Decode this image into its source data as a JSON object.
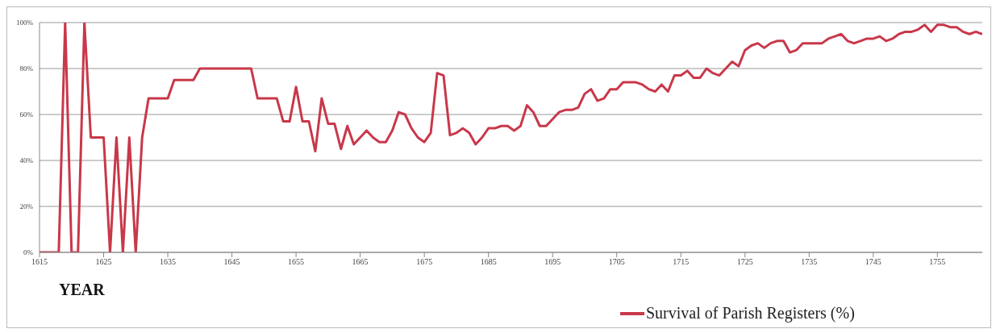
{
  "chart_data": {
    "type": "line",
    "xlabel": "YEAR",
    "legend": "bottom",
    "grid": "y",
    "marker": "none",
    "line_style": "solid",
    "x": [
      1615,
      1616,
      1617,
      1618,
      1619,
      1620,
      1621,
      1622,
      1623,
      1624,
      1625,
      1626,
      1627,
      1628,
      1629,
      1630,
      1631,
      1632,
      1633,
      1634,
      1635,
      1636,
      1637,
      1638,
      1639,
      1640,
      1641,
      1642,
      1643,
      1644,
      1645,
      1646,
      1647,
      1648,
      1649,
      1650,
      1651,
      1652,
      1653,
      1654,
      1655,
      1656,
      1657,
      1658,
      1659,
      1660,
      1661,
      1662,
      1663,
      1664,
      1665,
      1666,
      1667,
      1668,
      1669,
      1670,
      1671,
      1672,
      1673,
      1674,
      1675,
      1676,
      1677,
      1678,
      1679,
      1680,
      1681,
      1682,
      1683,
      1684,
      1685,
      1686,
      1687,
      1688,
      1689,
      1690,
      1691,
      1692,
      1693,
      1694,
      1695,
      1696,
      1697,
      1698,
      1699,
      1700,
      1701,
      1702,
      1703,
      1704,
      1705,
      1706,
      1707,
      1708,
      1709,
      1710,
      1711,
      1712,
      1713,
      1714,
      1715,
      1716,
      1717,
      1718,
      1719,
      1720,
      1721,
      1722,
      1723,
      1724,
      1725,
      1726,
      1727,
      1728,
      1729,
      1730,
      1731,
      1732,
      1733,
      1734,
      1735,
      1736,
      1737,
      1738,
      1739,
      1740,
      1741,
      1742,
      1743,
      1744,
      1745,
      1746,
      1747,
      1748,
      1749,
      1750,
      1751,
      1752,
      1753,
      1754,
      1755,
      1756,
      1757,
      1758,
      1759,
      1760,
      1761,
      1762
    ],
    "series": [
      {
        "name": "Survival of Parish Registers (%)",
        "color": "#c8384a",
        "values": [
          0,
          0,
          0,
          0,
          100,
          0,
          0,
          100,
          50,
          50,
          50,
          0,
          50,
          0,
          50,
          0,
          50,
          67,
          67,
          67,
          67,
          75,
          75,
          75,
          75,
          80,
          80,
          80,
          80,
          80,
          80,
          80,
          80,
          80,
          67,
          67,
          67,
          67,
          57,
          57,
          72,
          57,
          57,
          44,
          67,
          56,
          56,
          45,
          55,
          47,
          50,
          53,
          50,
          48,
          48,
          53,
          61,
          60,
          54,
          50,
          48,
          52,
          78,
          77,
          51,
          52,
          54,
          52,
          47,
          50,
          54,
          54,
          55,
          55,
          53,
          55,
          64,
          61,
          55,
          55,
          58,
          61,
          62,
          62,
          63,
          69,
          71,
          66,
          67,
          71,
          71,
          74,
          74,
          74,
          73,
          71,
          70,
          73,
          70,
          77,
          77,
          79,
          76,
          76,
          80,
          78,
          77,
          80,
          83,
          81,
          88,
          90,
          91,
          89,
          91,
          92,
          92,
          87,
          88,
          91,
          91,
          91,
          91,
          93,
          94,
          95,
          92,
          91,
          92,
          93,
          93,
          94,
          92,
          93,
          95,
          96,
          96,
          97,
          99,
          96,
          99,
          99,
          98,
          98,
          96,
          95,
          96,
          95
        ]
      }
    ],
    "xlim": [
      1615,
      1762
    ],
    "xticks": [
      1615,
      1625,
      1635,
      1645,
      1655,
      1665,
      1675,
      1685,
      1695,
      1705,
      1715,
      1725,
      1735,
      1745,
      1755
    ],
    "ylim": [
      0,
      100
    ],
    "yticks": [
      {
        "value": 0,
        "label": "0%"
      },
      {
        "value": 20,
        "label": "20%"
      },
      {
        "value": 40,
        "label": "40%"
      },
      {
        "value": 60,
        "label": "60%"
      },
      {
        "value": 80,
        "label": "80%"
      },
      {
        "value": 100,
        "label": "100%"
      }
    ]
  }
}
